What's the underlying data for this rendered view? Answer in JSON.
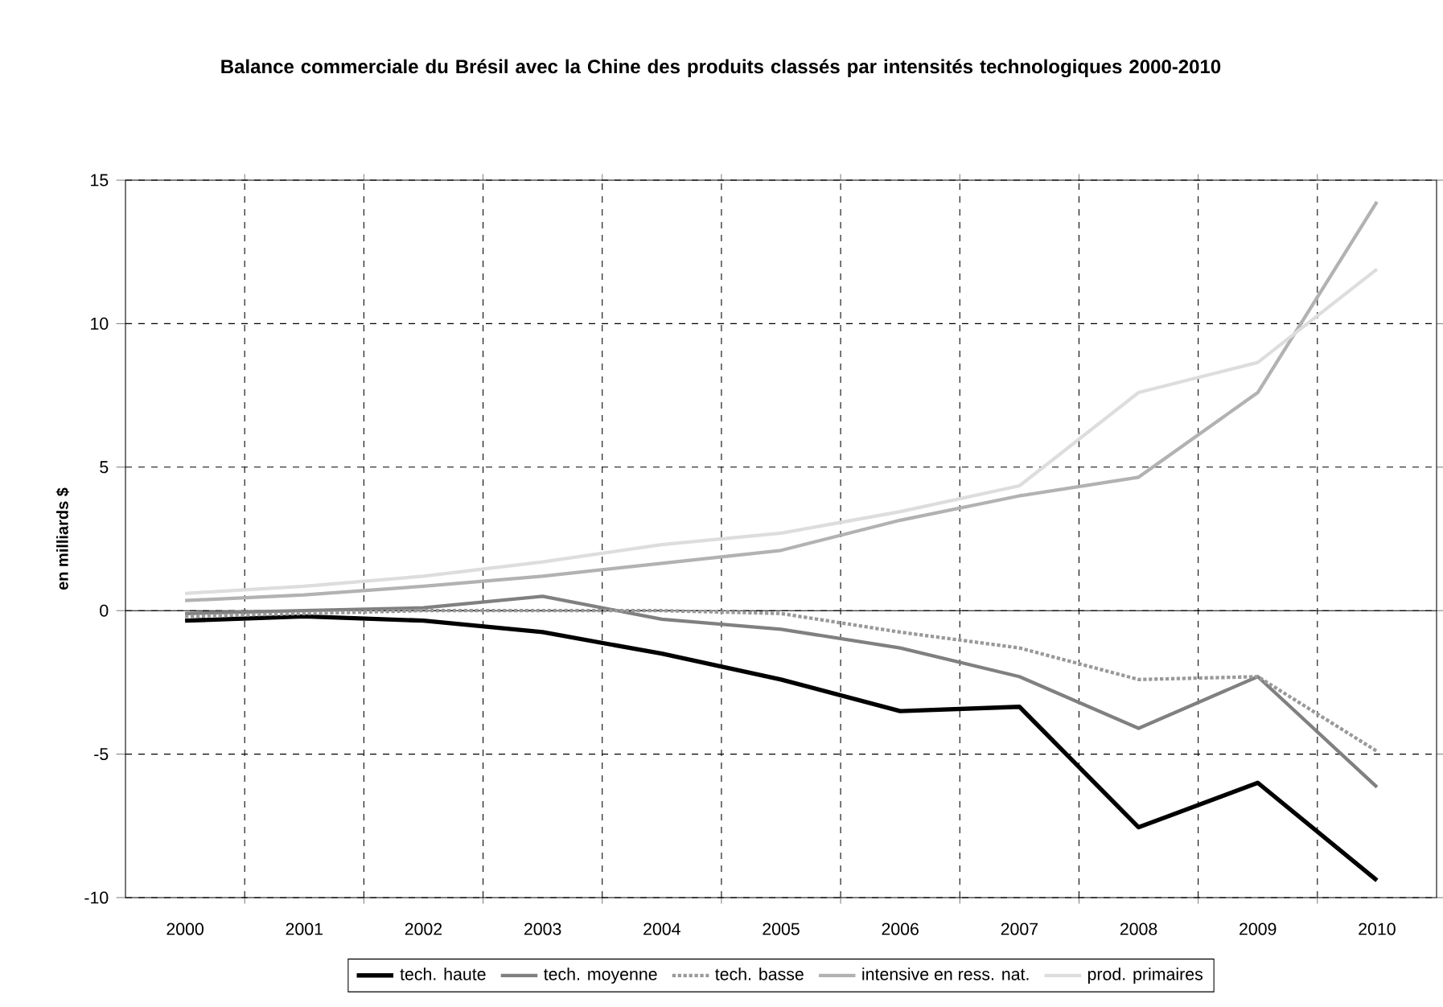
{
  "chart_data": {
    "type": "line",
    "title": "Balance commerciale du Brésil avec la Chine des produits classés par intensités technologiques 2000-2010",
    "ylabel": "en milliards $",
    "categories": [
      "2000",
      "2001",
      "2002",
      "2003",
      "2004",
      "2005",
      "2006",
      "2007",
      "2008",
      "2009",
      "2010"
    ],
    "series": [
      {
        "name": "tech. haute",
        "color": "#000000",
        "values": [
          -0.35,
          -0.2,
          -0.35,
          -0.75,
          -1.5,
          -2.4,
          -3.5,
          -3.35,
          -7.55,
          -6.0,
          -9.4
        ]
      },
      {
        "name": "tech. moyenne",
        "color": "#808080",
        "values": [
          -0.1,
          0.0,
          0.1,
          0.5,
          -0.3,
          -0.65,
          -1.3,
          -2.3,
          -4.1,
          -2.3,
          -6.15
        ]
      },
      {
        "name": "tech. basse",
        "color": "#999999",
        "line_style": "dotted",
        "values": [
          -0.2,
          -0.1,
          0.0,
          0.0,
          0.0,
          -0.1,
          -0.75,
          -1.3,
          -2.4,
          -2.3,
          -4.9
        ]
      },
      {
        "name": "intensive en ress. nat.",
        "color": "#b2b2b2",
        "values": [
          0.35,
          0.55,
          0.85,
          1.2,
          1.65,
          2.1,
          3.15,
          4.0,
          4.65,
          7.6,
          14.25
        ]
      },
      {
        "name": "prod. primaires",
        "color": "#dddddd",
        "values": [
          0.6,
          0.85,
          1.2,
          1.7,
          2.3,
          2.7,
          3.45,
          4.35,
          7.6,
          8.65,
          11.9
        ]
      }
    ],
    "ylim": [
      -10,
      15
    ],
    "yticks": [
      -10,
      -5,
      0,
      5,
      10,
      15
    ],
    "grid": true,
    "legend": "bottom",
    "line_style": "solid",
    "marker": "none"
  }
}
